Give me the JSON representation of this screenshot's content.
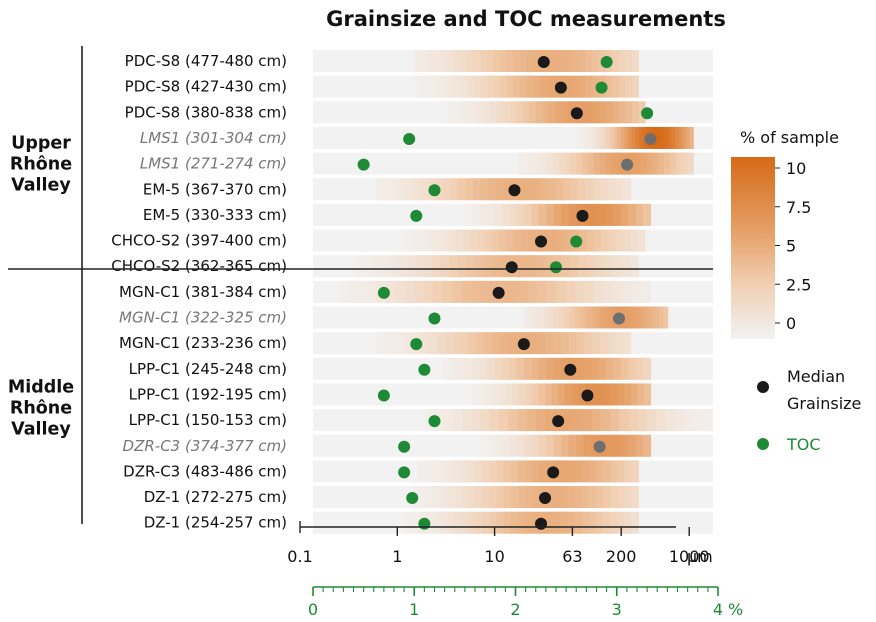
{
  "chart_data": {
    "type": "heatmap",
    "title": "Grainsize and TOC measurements",
    "groups": [
      {
        "label_lines": [
          "Upper",
          "Rhône",
          "Valley"
        ],
        "rows": [
          0,
          8
        ]
      },
      {
        "label_lines": [
          "Middle",
          "Rhône",
          "Valley"
        ],
        "rows": [
          9,
          18
        ]
      }
    ],
    "x_axis_grainsize": {
      "scale": "log",
      "unit": "µm",
      "range": [
        0.1,
        2000
      ],
      "ticks": [
        {
          "value": 0.1,
          "label": "0.1"
        },
        {
          "value": 1,
          "label": "1"
        },
        {
          "value": 10,
          "label": "10"
        },
        {
          "value": 63,
          "label": "63"
        },
        {
          "value": 200,
          "label": "200"
        },
        {
          "value": 1000,
          "label": "1000"
        }
      ]
    },
    "x_axis_toc": {
      "scale": "linear",
      "unit": "%",
      "range": [
        0,
        4
      ],
      "major_ticks": [
        0,
        1,
        2,
        3,
        4
      ],
      "labels": [
        "0",
        "1",
        "2",
        "3",
        "4"
      ],
      "minor_step": 0.1,
      "color": "#1f8a36"
    },
    "colorbar": {
      "title": "% of sample",
      "range": [
        0,
        10
      ],
      "ticks": [
        "10",
        "7.5",
        "5",
        "2.5",
        "0"
      ],
      "color_low": "#f2f2f2",
      "color_high": "#d66a17"
    },
    "legend": {
      "median_label_lines": [
        "Median",
        "Grainsize"
      ],
      "toc_label": "TOC",
      "median_color": "#1a1a1a",
      "median_alt_color": "#6e6e6e",
      "toc_color": "#1f8a36"
    },
    "rows": [
      {
        "label": "PDC-S8 (477-480 cm)",
        "italic": false,
        "median_um": 32,
        "toc_pct": 2.9,
        "dist": {
          "mode_um": 38,
          "peak_pct": 5,
          "spread": 0.65,
          "min_um": 1.5,
          "max_um": 300
        }
      },
      {
        "label": "PDC-S8 (427-430 cm)",
        "italic": false,
        "median_um": 48,
        "toc_pct": 2.85,
        "dist": {
          "mode_um": 50,
          "peak_pct": 5.5,
          "spread": 0.6,
          "min_um": 1.5,
          "max_um": 300
        }
      },
      {
        "label": "PDC-S8 (380-838 cm)",
        "italic": false,
        "median_um": 70,
        "toc_pct": 3.3,
        "dist": {
          "mode_um": 80,
          "peak_pct": 6,
          "spread": 0.55,
          "min_um": 2,
          "max_um": 350
        }
      },
      {
        "label": "LMS1 (301-304 cm)",
        "italic": true,
        "median_um": 400,
        "toc_pct": 0.95,
        "dist": {
          "mode_um": 450,
          "peak_pct": 10,
          "spread": 0.3,
          "min_um": 60,
          "max_um": 1100
        }
      },
      {
        "label": "LMS1 (271-274 cm)",
        "italic": true,
        "median_um": 230,
        "toc_pct": 0.5,
        "dist": {
          "mode_um": 230,
          "peak_pct": 6,
          "spread": 0.45,
          "min_um": 10,
          "max_um": 1100
        }
      },
      {
        "label": "EM-5 (367-370 cm)",
        "italic": false,
        "median_um": 16,
        "toc_pct": 1.2,
        "dist": {
          "mode_um": 18,
          "peak_pct": 5,
          "spread": 0.65,
          "min_um": 0.6,
          "max_um": 250
        }
      },
      {
        "label": "EM-5 (330-333 cm)",
        "italic": false,
        "median_um": 80,
        "toc_pct": 1.02,
        "dist": {
          "mode_um": 100,
          "peak_pct": 7,
          "spread": 0.5,
          "min_um": 1,
          "max_um": 400
        }
      },
      {
        "label": "CHCO-S2 (397-400 cm)",
        "italic": false,
        "median_um": 30,
        "toc_pct": 2.6,
        "dist": {
          "mode_um": 35,
          "peak_pct": 5,
          "spread": 0.6,
          "min_um": 1,
          "max_um": 350
        }
      },
      {
        "label": "CHCO-S2 (362-365 cm)",
        "italic": false,
        "median_um": 15,
        "toc_pct": 2.4,
        "dist": {
          "mode_um": 18,
          "peak_pct": 4.5,
          "spread": 0.7,
          "min_um": 0.3,
          "max_um": 300
        }
      },
      {
        "label": "MGN-C1 (381-384 cm)",
        "italic": false,
        "median_um": 11,
        "toc_pct": 0.7,
        "dist": {
          "mode_um": 12,
          "peak_pct": 4.5,
          "spread": 0.7,
          "min_um": 0.2,
          "max_um": 400
        }
      },
      {
        "label": "MGN-C1 (322-325 cm)",
        "italic": true,
        "median_um": 190,
        "toc_pct": 1.2,
        "dist": {
          "mode_um": 200,
          "peak_pct": 6,
          "spread": 0.45,
          "min_um": 20,
          "max_um": 600
        }
      },
      {
        "label": "MGN-C1 (233-236 cm)",
        "italic": false,
        "median_um": 20,
        "toc_pct": 1.02,
        "dist": {
          "mode_um": 22,
          "peak_pct": 5,
          "spread": 0.65,
          "min_um": 0.5,
          "max_um": 250
        }
      },
      {
        "label": "LPP-C1 (245-248 cm)",
        "italic": false,
        "median_um": 60,
        "toc_pct": 1.1,
        "dist": {
          "mode_um": 65,
          "peak_pct": 6,
          "spread": 0.55,
          "min_um": 1,
          "max_um": 400
        }
      },
      {
        "label": "LPP-C1 (192-195 cm)",
        "italic": false,
        "median_um": 90,
        "toc_pct": 0.7,
        "dist": {
          "mode_um": 110,
          "peak_pct": 7,
          "spread": 0.5,
          "min_um": 2,
          "max_um": 400
        }
      },
      {
        "label": "LPP-C1 (150-153 cm)",
        "italic": false,
        "median_um": 45,
        "toc_pct": 1.2,
        "dist": {
          "mode_um": 55,
          "peak_pct": 5.5,
          "spread": 0.6,
          "min_um": 1,
          "max_um": 1700
        }
      },
      {
        "label": "DZR-C3 (374-377 cm)",
        "italic": true,
        "median_um": 120,
        "toc_pct": 0.9,
        "dist": {
          "mode_um": 140,
          "peak_pct": 6.5,
          "spread": 0.5,
          "min_um": 1,
          "max_um": 400
        }
      },
      {
        "label": "DZR-C3 (483-486 cm)",
        "italic": false,
        "median_um": 40,
        "toc_pct": 0.9,
        "dist": {
          "mode_um": 50,
          "peak_pct": 5.5,
          "spread": 0.6,
          "min_um": 1,
          "max_um": 300
        }
      },
      {
        "label": "DZ-1 (272-275 cm)",
        "italic": false,
        "median_um": 33,
        "toc_pct": 0.98,
        "dist": {
          "mode_um": 40,
          "peak_pct": 5,
          "spread": 0.6,
          "min_um": 1,
          "max_um": 300
        }
      },
      {
        "label": "DZ-1 (254-257 cm)",
        "italic": false,
        "median_um": 30,
        "toc_pct": 1.1,
        "dist": {
          "mode_um": 35,
          "peak_pct": 5,
          "spread": 0.6,
          "min_um": 1,
          "max_um": 300
        }
      }
    ]
  }
}
